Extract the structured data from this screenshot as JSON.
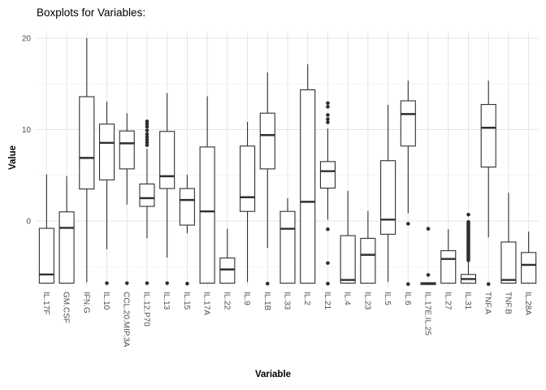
{
  "title": "Boxplots for Variables:",
  "chart_data": {
    "type": "boxplot",
    "title": "Boxplots for Variables:",
    "xlabel": "Variable",
    "ylabel": "Value",
    "ylim": [
      -7.2,
      20.8
    ],
    "yticks_major": [
      0,
      10,
      20
    ],
    "yticks_minor": [
      -5,
      5,
      15
    ],
    "grid": "major+minor horizontal, major vertical per category",
    "legend": "none",
    "categories": [
      "IL.17F",
      "GM.CSF",
      "IFN.G",
      "IL.10",
      "CCL.20.MIP.3A",
      "IL.12.P70",
      "IL.13",
      "IL.15",
      "IL.17A",
      "IL.22",
      "IL.9",
      "IL.1B",
      "IL.33",
      "IL.2",
      "IL.21",
      "IL.4",
      "IL.23",
      "IL.5",
      "IL.6",
      "IL.17E.IL.25",
      "IL.27",
      "IL.31",
      "TNF.A",
      "TNF.B",
      "IL.28A"
    ],
    "series": [
      {
        "name": "IL.17F",
        "low": -6.8,
        "q1": -6.8,
        "median": -5.85,
        "q3": -0.8,
        "high": 5.1,
        "outliers": []
      },
      {
        "name": "GM.CSF",
        "low": -6.8,
        "q1": -6.8,
        "median": -0.75,
        "q3": 1.0,
        "high": 4.9,
        "outliers": []
      },
      {
        "name": "IFN.G",
        "low": -6.7,
        "q1": 3.5,
        "median": 6.9,
        "q3": 13.6,
        "high": 20.0,
        "outliers": []
      },
      {
        "name": "IL.10",
        "low": -3.1,
        "q1": 4.5,
        "median": 8.55,
        "q3": 10.6,
        "high": 13.05,
        "outliers": [
          -6.8
        ]
      },
      {
        "name": "CCL.20.MIP.3A",
        "low": 1.8,
        "q1": 5.7,
        "median": 8.5,
        "q3": 9.85,
        "high": 11.8,
        "outliers": [
          -6.8
        ]
      },
      {
        "name": "IL.12.P70",
        "low": -1.9,
        "q1": 1.6,
        "median": 2.5,
        "q3": 4.05,
        "high": 7.9,
        "outliers": [
          10.9,
          10.6,
          10.3,
          9.9,
          9.5,
          9.2,
          8.9,
          8.6,
          8.3,
          -6.8
        ]
      },
      {
        "name": "IL.13",
        "low": -4.0,
        "q1": 3.55,
        "median": 4.9,
        "q3": 9.8,
        "high": 14.0,
        "outliers": [
          -6.8
        ]
      },
      {
        "name": "IL.15",
        "low": -1.35,
        "q1": -0.45,
        "median": 2.3,
        "q3": 3.55,
        "high": 5.05,
        "outliers": [
          -6.85
        ]
      },
      {
        "name": "IL.17A",
        "low": -6.8,
        "q1": -6.8,
        "median": 1.05,
        "q3": 8.1,
        "high": 13.65,
        "outliers": []
      },
      {
        "name": "IL.22",
        "low": -6.8,
        "q1": -6.8,
        "median": -5.3,
        "q3": -4.05,
        "high": -0.85,
        "outliers": []
      },
      {
        "name": "IL.9",
        "low": -6.7,
        "q1": 1.05,
        "median": 2.6,
        "q3": 8.2,
        "high": 10.85,
        "outliers": []
      },
      {
        "name": "IL.1B",
        "low": -2.95,
        "q1": 5.7,
        "median": 9.4,
        "q3": 11.8,
        "high": 16.25,
        "outliers": [
          -6.85
        ]
      },
      {
        "name": "IL.33",
        "low": -6.8,
        "q1": -6.8,
        "median": -0.85,
        "q3": 1.05,
        "high": 2.5,
        "outliers": []
      },
      {
        "name": "IL.2",
        "low": -6.8,
        "q1": -6.8,
        "median": 2.1,
        "q3": 14.35,
        "high": 17.15,
        "outliers": []
      },
      {
        "name": "IL.21",
        "low": 0.15,
        "q1": 3.6,
        "median": 5.45,
        "q3": 6.5,
        "high": 10.1,
        "outliers": [
          12.9,
          12.5,
          11.6,
          11.15,
          10.8,
          -0.9,
          -4.6,
          -6.85
        ]
      },
      {
        "name": "IL.4",
        "low": -6.8,
        "q1": -6.8,
        "median": -6.45,
        "q3": -1.6,
        "high": 3.3,
        "outliers": []
      },
      {
        "name": "IL.23",
        "low": -6.8,
        "q1": -6.8,
        "median": -3.7,
        "q3": -1.9,
        "high": 1.1,
        "outliers": []
      },
      {
        "name": "IL.5",
        "low": -6.65,
        "q1": -1.45,
        "median": 0.15,
        "q3": 6.6,
        "high": 12.7,
        "outliers": []
      },
      {
        "name": "IL.6",
        "low": 0.85,
        "q1": 8.2,
        "median": 11.7,
        "q3": 13.15,
        "high": 15.35,
        "outliers": [
          -0.3,
          -6.9
        ]
      },
      {
        "name": "IL.17E.IL.25",
        "low": -6.95,
        "q1": -6.95,
        "median": -6.85,
        "q3": -6.75,
        "high": -6.75,
        "outliers": [
          -5.9,
          -0.85
        ]
      },
      {
        "name": "IL.27",
        "low": -6.8,
        "q1": -6.8,
        "median": -4.15,
        "q3": -3.25,
        "high": -0.9,
        "outliers": []
      },
      {
        "name": "IL.31",
        "low": -6.8,
        "q1": -6.8,
        "median": -6.35,
        "q3": -5.85,
        "high": -4.45,
        "outliers": [
          0.7,
          -0.1,
          -0.25,
          -0.4,
          -0.55,
          -0.7,
          -0.85,
          -1.0,
          -1.15,
          -1.3,
          -1.45,
          -1.6,
          -1.75,
          -1.9,
          -2.05,
          -2.2,
          -2.35,
          -2.5,
          -2.65,
          -2.8,
          -2.95,
          -3.1,
          -3.25,
          -3.4,
          -3.55,
          -3.7,
          -3.85,
          -4.0,
          -4.15,
          -4.3
        ]
      },
      {
        "name": "TNF.A",
        "low": -1.8,
        "q1": 5.9,
        "median": 10.2,
        "q3": 12.75,
        "high": 15.35,
        "outliers": [
          -6.9
        ]
      },
      {
        "name": "TNF.B",
        "low": -6.8,
        "q1": -6.8,
        "median": -6.45,
        "q3": -2.3,
        "high": 3.1,
        "outliers": []
      },
      {
        "name": "IL.28A",
        "low": -6.8,
        "q1": -6.8,
        "median": -4.8,
        "q3": -3.45,
        "high": -1.15,
        "outliers": []
      }
    ]
  },
  "colors": {
    "box_stroke": "#2f2f2f",
    "outlier_fill": "#2f2f2f",
    "grid_major": "#e4e4e4",
    "grid_minor": "#f1f1f1",
    "axis_text": "#4d4d4d",
    "background": "#ffffff"
  }
}
